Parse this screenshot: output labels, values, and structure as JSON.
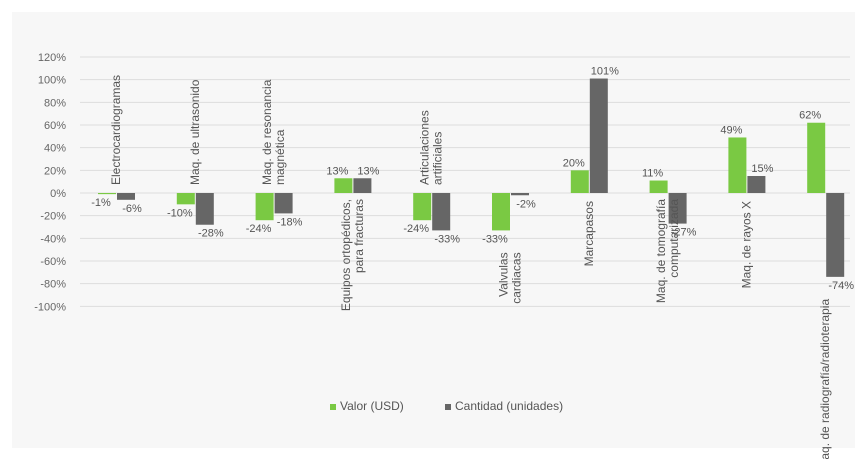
{
  "chart_data": {
    "type": "bar",
    "title": "",
    "xlabel": "",
    "ylabel": "",
    "ylim": [
      -100,
      120
    ],
    "yticks": [
      120,
      100,
      80,
      60,
      40,
      20,
      0,
      -20,
      -40,
      -60,
      -80,
      -100
    ],
    "tick_suffix": "%",
    "grid": true,
    "legend_position": "bottom",
    "categories": [
      "Electrocardiogramas",
      "Maq. de ultrasonido",
      "Maq. de resonancia magnética",
      "Equipos ortopédicos, para fracturas",
      "Articulaciones artificiales",
      "Valvulas cardiacas",
      "Marcapasos",
      "Maq. de tomografía computarizada",
      "Maq. de rayos X",
      "Maq. de radiografía/radioterapia"
    ],
    "series": [
      {
        "name": "Valor (USD)",
        "color": "#7ac943",
        "values": [
          -1,
          -10,
          -24,
          13,
          -24,
          -33,
          20,
          11,
          49,
          62
        ]
      },
      {
        "name": "Cantidad (unidades)",
        "color": "#666666",
        "values": [
          -6,
          -28,
          -18,
          13,
          -33,
          -2,
          101,
          -27,
          15,
          -74
        ]
      }
    ]
  }
}
